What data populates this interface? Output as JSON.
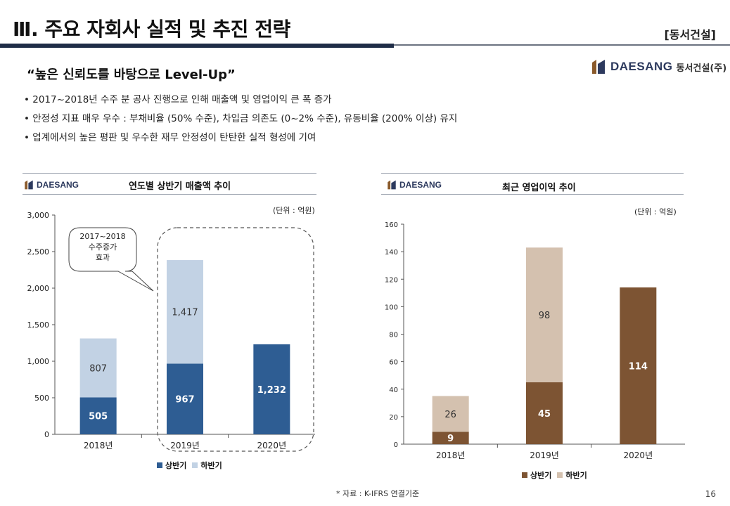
{
  "header": {
    "title": "Ⅲ. 주요 자회사 실적 및 추진 전략",
    "company_tag": "[동서건설]",
    "quote": "“높은 신뢰도를 바탕으로 Level-Up”"
  },
  "logo": {
    "word": "DAESANG",
    "korean": "동서건설(주)"
  },
  "bullets": [
    "• 2017~2018년 수주 분 공사 진행으로 인해 매출액 및 영업이익 큰 폭 증가",
    "• 안정성 지표 매우 우수 : 부채비율 (50% 수준),  차입금 의존도 (0~2% 수준), 유동비율 (200% 이상) 유지",
    "• 업계에서의 높은 평판 및 우수한 재무 안정성이 탄탄한 실적 형성에 기여"
  ],
  "colors": {
    "sales_first": "#2e5d93",
    "sales_second": "#c2d2e4",
    "op_first": "#7d5433",
    "op_second": "#d4c1af",
    "navy": "#1f2d47"
  },
  "footer": {
    "source": "* 자료 : K-IFRS 연결기준",
    "page": "16"
  },
  "chart_data": [
    {
      "type": "bar",
      "stacked": true,
      "title": "연도별 상반기 매출액 추이",
      "unit": "(단위 : 억원)",
      "logo": "DAESANG",
      "categories": [
        "2018년",
        "2019년",
        "2020년"
      ],
      "series": [
        {
          "name": "상반기",
          "values": [
            505,
            967,
            1232
          ],
          "labels": [
            "505",
            "967",
            "1,232"
          ]
        },
        {
          "name": "하반기",
          "values": [
            807,
            1417,
            null
          ],
          "labels": [
            "807",
            "1,417",
            ""
          ]
        }
      ],
      "ylim": [
        0,
        3000
      ],
      "yticks": [
        0,
        500,
        1000,
        1500,
        2000,
        2500,
        3000
      ],
      "ytick_labels": [
        "0",
        "500",
        "1,000",
        "1,500",
        "2,000",
        "2,500",
        "3,000"
      ],
      "callout": [
        "2017~2018",
        "수주증가",
        "효과"
      ],
      "legend": "bottom"
    },
    {
      "type": "bar",
      "stacked": true,
      "title": "최근 영업이익 추이",
      "unit": "(단위 : 억원)",
      "logo": "DAESANG",
      "categories": [
        "2018년",
        "2019년",
        "2020년"
      ],
      "series": [
        {
          "name": "상반기",
          "values": [
            9,
            45,
            114
          ],
          "labels": [
            "9",
            "45",
            "114"
          ]
        },
        {
          "name": "하반기",
          "values": [
            26,
            98,
            null
          ],
          "labels": [
            "26",
            "98",
            ""
          ]
        }
      ],
      "ylim": [
        0,
        160
      ],
      "yticks": [
        0,
        20,
        40,
        60,
        80,
        100,
        120,
        140,
        160
      ],
      "ytick_labels": [
        "0",
        "20",
        "40",
        "60",
        "80",
        "100",
        "120",
        "140",
        "160"
      ],
      "legend": "bottom"
    }
  ]
}
